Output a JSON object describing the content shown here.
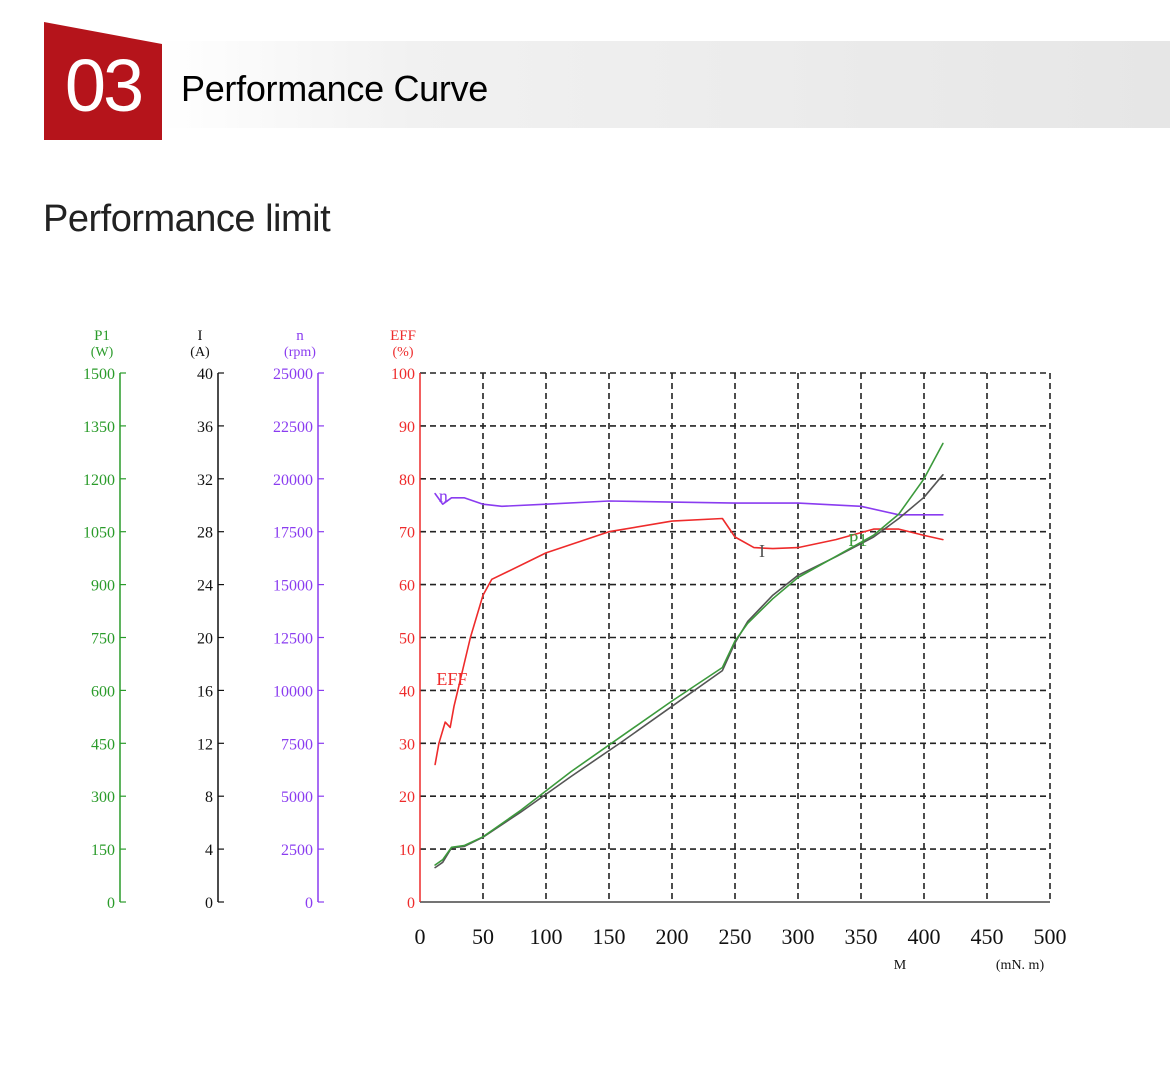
{
  "header": {
    "number": "03",
    "title": "Performance Curve",
    "badge_color": "#b5141b"
  },
  "subtitle": "Performance limit",
  "chart_data": {
    "type": "line",
    "x_axis": {
      "name": "M",
      "unit": "(mN. m)",
      "ticks": [
        0,
        50,
        100,
        150,
        200,
        250,
        300,
        350,
        400,
        450,
        500
      ],
      "range": [
        0,
        500
      ]
    },
    "y_axes": [
      {
        "key": "P1",
        "name": "P1",
        "unit": "(W)",
        "color": "#2a9b2a",
        "range": [
          0,
          1500
        ],
        "ticks": [
          0,
          150,
          300,
          450,
          600,
          750,
          900,
          1050,
          1200,
          1350,
          1500
        ]
      },
      {
        "key": "I",
        "name": "I",
        "unit": "(A)",
        "color": "#111111",
        "range": [
          0,
          40
        ],
        "ticks": [
          0,
          4,
          8,
          12,
          16,
          20,
          24,
          28,
          32,
          36,
          40
        ]
      },
      {
        "key": "n",
        "name": "n",
        "unit": "(rpm)",
        "color": "#8a3cf0",
        "range": [
          0,
          25000
        ],
        "ticks": [
          0,
          2500,
          5000,
          7500,
          10000,
          12500,
          15000,
          17500,
          20000,
          22500,
          25000
        ]
      },
      {
        "key": "EFF",
        "name": "EFF",
        "unit": "(%)",
        "color": "#ee2b2b",
        "range": [
          0,
          100
        ],
        "ticks": [
          0,
          10,
          20,
          30,
          40,
          50,
          60,
          70,
          80,
          90,
          100
        ]
      }
    ],
    "grid": true,
    "series": [
      {
        "name": "n",
        "axis": "n",
        "color": "#8a3cf0",
        "label_at": [
          15,
          18900
        ],
        "x": [
          12,
          18,
          25,
          35,
          50,
          65,
          100,
          150,
          200,
          250,
          300,
          350,
          380,
          400,
          415
        ],
        "y": [
          19300,
          18800,
          19100,
          19100,
          18800,
          18700,
          18800,
          18950,
          18900,
          18850,
          18850,
          18700,
          18300,
          18300,
          18300
        ]
      },
      {
        "name": "EFF",
        "axis": "EFF",
        "color": "#ee2b2b",
        "label_at": [
          13,
          41
        ],
        "x": [
          12,
          15,
          20,
          24,
          27,
          30,
          40,
          50,
          57,
          70,
          100,
          150,
          200,
          240,
          250,
          265,
          280,
          300,
          330,
          360,
          380,
          400,
          415
        ],
        "y": [
          26,
          30,
          34,
          33,
          37,
          40,
          50,
          58,
          61,
          62.5,
          66,
          70,
          72,
          72.5,
          69,
          67,
          66.8,
          67,
          68.5,
          70.5,
          70.5,
          69.3,
          68.5
        ]
      },
      {
        "name": "I",
        "axis": "I",
        "color": "#555555",
        "label_at": [
          269,
          26.1
        ],
        "x": [
          12,
          18,
          25,
          35,
          50,
          80,
          120,
          160,
          200,
          240,
          250,
          260,
          280,
          300,
          330,
          360,
          380,
          400,
          415
        ],
        "y": [
          2.6,
          3.0,
          4.1,
          4.2,
          4.9,
          6.8,
          9.5,
          12.1,
          14.8,
          17.5,
          19.6,
          21.2,
          23.2,
          24.7,
          26.1,
          27.6,
          29.0,
          30.6,
          32.3
        ]
      },
      {
        "name": "P1",
        "axis": "P1",
        "color": "#3c9a3c",
        "label_at": [
          340,
          1010
        ],
        "x": [
          12,
          18,
          25,
          35,
          50,
          80,
          120,
          160,
          200,
          240,
          250,
          260,
          280,
          300,
          330,
          360,
          380,
          400,
          415
        ],
        "y": [
          105,
          120,
          155,
          160,
          185,
          260,
          370,
          470,
          570,
          665,
          740,
          790,
          860,
          920,
          980,
          1040,
          1100,
          1200,
          1300
        ]
      }
    ]
  }
}
